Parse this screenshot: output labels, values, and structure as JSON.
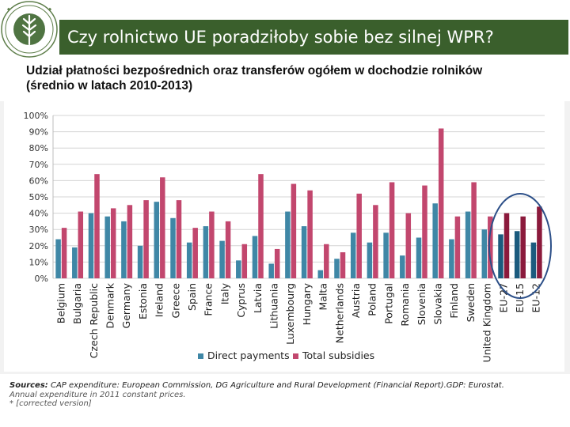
{
  "header": {
    "title": "Czy rolnictwo UE poradziłoby sobie bez silnej WPR?"
  },
  "subtitle": {
    "line1": "Udział płatności bezpośrednich oraz transferów ogółem w dochodzie rolników",
    "line2": "(średnio w latach 2010-2013)"
  },
  "colors": {
    "title_bar": "#3a5f2c",
    "direct_payments": "#3f87a6",
    "total_subsidies": "#c2476e",
    "eu_direct_payments": "#1b5b7e",
    "eu_total_subsidies": "#8b1a3c",
    "highlight_ellipse": "#2c4f88"
  },
  "chart_data": {
    "type": "bar",
    "ylim": [
      0,
      100
    ],
    "yticks": [
      0,
      10,
      20,
      30,
      40,
      50,
      60,
      70,
      80,
      90,
      100
    ],
    "ytick_labels": [
      "0%",
      "10%",
      "20%",
      "30%",
      "40%",
      "50%",
      "60%",
      "70%",
      "80%",
      "90%",
      "100%"
    ],
    "grid": true,
    "legend_position": "bottom-center",
    "categories": [
      "Belgium",
      "Bulgaria",
      "Czech Republic",
      "Denmark",
      "Germany",
      "Estonia",
      "Ireland",
      "Greece",
      "Spain",
      "France",
      "Italy",
      "Cyprus",
      "Latvia",
      "Lithuania",
      "Luxembourg",
      "Hungary",
      "Malta",
      "Netherlands",
      "Austria",
      "Poland",
      "Portugal",
      "Romania",
      "Slovenia",
      "Slovakia",
      "Finland",
      "Sweden",
      "United Kingdom",
      "EU-27",
      "EU-15",
      "EU-12"
    ],
    "highlighted_categories": [
      "EU-27",
      "EU-15",
      "EU-12"
    ],
    "series": [
      {
        "name": "Direct payments",
        "values": [
          24,
          19,
          40,
          38,
          35,
          20,
          47,
          37,
          22,
          32,
          23,
          11,
          26,
          9,
          41,
          32,
          5,
          12,
          28,
          22,
          28,
          14,
          25,
          46,
          24,
          41,
          30,
          27,
          29,
          22
        ]
      },
      {
        "name": "Total subsidies",
        "values": [
          31,
          41,
          64,
          43,
          45,
          48,
          62,
          48,
          31,
          41,
          35,
          21,
          64,
          18,
          58,
          54,
          21,
          16,
          52,
          45,
          59,
          40,
          57,
          92,
          38,
          59,
          38,
          40,
          38,
          44
        ]
      }
    ]
  },
  "sources": {
    "label": "Sources:",
    "text": " CAP expenditure: European Commission, DG Agriculture and Rural Development (Financial Report).GDP: Eurostat.",
    "line2": "Annual expenditure in 2011 constant prices.",
    "line3": "* [corrected version]"
  }
}
